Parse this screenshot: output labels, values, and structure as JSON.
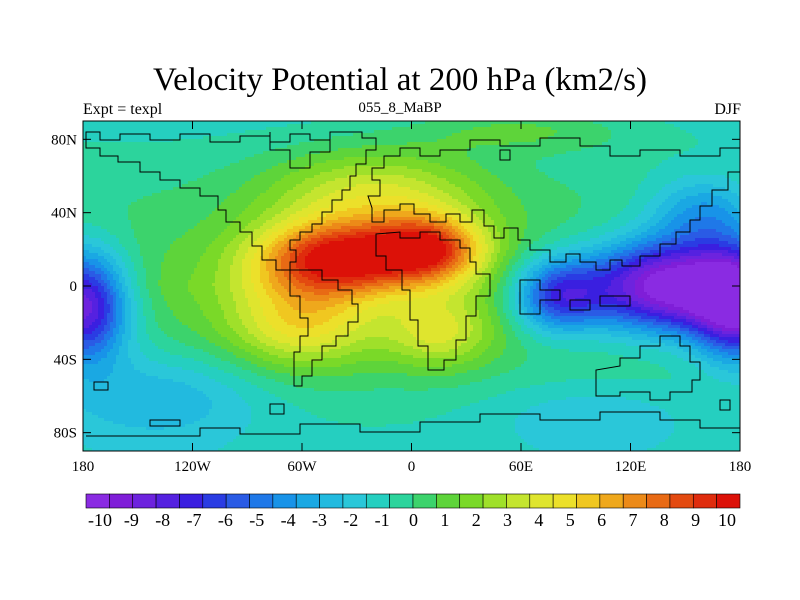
{
  "chart_data": {
    "type": "heatmap",
    "title": "Velocity Potential at 200 hPa (km2/s)",
    "subtitle_left": "Expt = texpl",
    "subtitle_center": "055_8_MaBP",
    "subtitle_right": "DJF",
    "xlim": [
      -180,
      180
    ],
    "ylim": [
      -90,
      90
    ],
    "x_ticks": [
      {
        "value": -180,
        "label": "180"
      },
      {
        "value": -120,
        "label": "120W"
      },
      {
        "value": -60,
        "label": "60W"
      },
      {
        "value": 0,
        "label": "0"
      },
      {
        "value": 60,
        "label": "60E"
      },
      {
        "value": 120,
        "label": "120E"
      },
      {
        "value": 180,
        "label": "180"
      }
    ],
    "y_ticks": [
      {
        "value": 80,
        "label": "80N"
      },
      {
        "value": 40,
        "label": "40N"
      },
      {
        "value": 0,
        "label": "0"
      },
      {
        "value": -40,
        "label": "40S"
      },
      {
        "value": -80,
        "label": "80S"
      }
    ],
    "colorbar": {
      "labels": [
        "-10",
        "-9",
        "-8",
        "-7",
        "-6",
        "-5",
        "-4",
        "-3",
        "-2",
        "-1",
        "0",
        "1",
        "2",
        "3",
        "4",
        "5",
        "6",
        "7",
        "8",
        "9",
        "10"
      ],
      "colors": [
        "#8a2be2",
        "#7f1ed8",
        "#6d23de",
        "#5521e0",
        "#3a1fe0",
        "#2a3ce3",
        "#2a5be5",
        "#1f78e8",
        "#1893e8",
        "#1aa8e3",
        "#22badf",
        "#2ac7d9",
        "#25cfc0",
        "#2cd49c",
        "#3cd36c",
        "#5ed43a",
        "#7ad928",
        "#9fe02a",
        "#c4e52f",
        "#dfe52e",
        "#ece02a",
        "#f0c720",
        "#efa81c",
        "#ec8a18",
        "#e86a14",
        "#e34a10",
        "#df2c0d",
        "#dc1108"
      ]
    },
    "field": {
      "lon_range": [
        -180,
        180
      ],
      "lat_range": [
        -90,
        90
      ],
      "max_value": 10.5,
      "min_value": -10.5,
      "background_value": 1.2,
      "features": [
        {
          "lon": -40,
          "lat": 15,
          "value": 9.3,
          "spread_lon": 45,
          "spread_lat": 20
        },
        {
          "lon": 10,
          "lat": 20,
          "value": 7.5,
          "spread_lon": 30,
          "spread_lat": 18
        },
        {
          "lon": -20,
          "lat": 50,
          "value": 4.0,
          "spread_lon": 60,
          "spread_lat": 25
        },
        {
          "lon": -60,
          "lat": -20,
          "value": 4.5,
          "spread_lon": 40,
          "spread_lat": 25
        },
        {
          "lon": 15,
          "lat": -25,
          "value": 3.5,
          "spread_lon": 30,
          "spread_lat": 20
        },
        {
          "lon": 140,
          "lat": 0,
          "value": -11.5,
          "spread_lon": 45,
          "spread_lat": 25
        },
        {
          "lon": 80,
          "lat": -5,
          "value": -6.5,
          "spread_lon": 25,
          "spread_lat": 20
        },
        {
          "lon": -180,
          "lat": -10,
          "value": -9.5,
          "spread_lon": 25,
          "spread_lat": 30
        },
        {
          "lon": 180,
          "lat": -10,
          "value": -9.5,
          "spread_lon": 25,
          "spread_lat": 30
        },
        {
          "lon": -140,
          "lat": -60,
          "value": -2.5,
          "spread_lon": 60,
          "spread_lat": 25
        },
        {
          "lon": 160,
          "lat": 40,
          "value": -3.5,
          "spread_lon": 30,
          "spread_lat": 20
        },
        {
          "lon": 100,
          "lat": -70,
          "value": -1.5,
          "spread_lon": 60,
          "spread_lat": 20
        },
        {
          "lon": 60,
          "lat": 85,
          "value": 1.8,
          "spread_lon": 60,
          "spread_lat": 12
        }
      ]
    }
  }
}
